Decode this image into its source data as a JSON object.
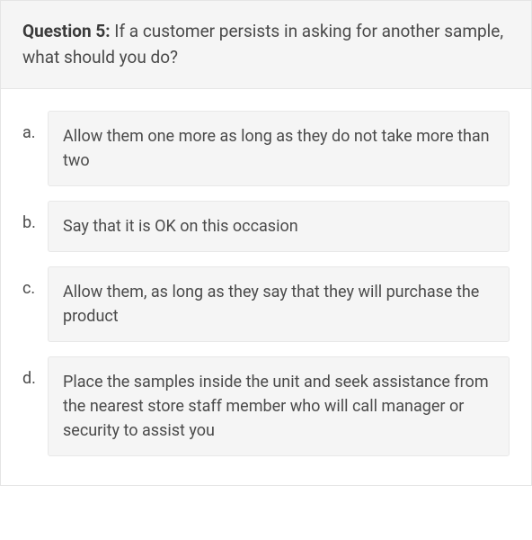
{
  "question": {
    "label": "Question 5:",
    "text": " If a customer persists in asking for another sample, what should you do?"
  },
  "answers": [
    {
      "letter": "a.",
      "text": "Allow them one more as long as they do not take more than two"
    },
    {
      "letter": "b.",
      "text": "Say that it is OK on this occasion"
    },
    {
      "letter": "c.",
      "text": "Allow them, as long as they say that they will purchase the product"
    },
    {
      "letter": "d.",
      "text": "Place the samples inside the unit and seek assistance from the nearest store staff member who will call manager or security to assist you"
    }
  ],
  "colors": {
    "header_bg": "#f5f5f5",
    "answer_bg": "#f5f5f5",
    "border": "#e5e5e5",
    "text_dark": "#3a3a3a",
    "text_body": "#4a4a4a"
  }
}
